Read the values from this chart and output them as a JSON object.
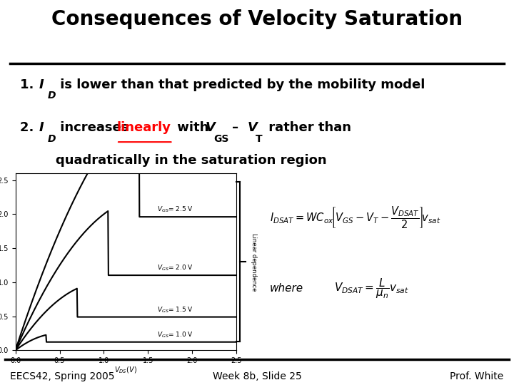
{
  "title": "Consequences of Velocity Saturation",
  "footer_left": "EECS42, Spring 2005",
  "footer_center": "Week 8b, Slide 25",
  "footer_right": "Prof. White",
  "vgs_values": [
    2.5,
    2.0,
    1.5,
    1.0
  ],
  "vgs_labels": [
    "$V_{GS}$= 2.5 V",
    "$V_{GS}$= 2.0 V",
    "$V_{GS}$= 1.5 V",
    "$V_{GS}$= 1.0 V"
  ],
  "bg_color": "#ffffff",
  "text_color": "#000000",
  "title_fontsize": 20,
  "body_fontsize": 13,
  "footer_fontsize": 10
}
